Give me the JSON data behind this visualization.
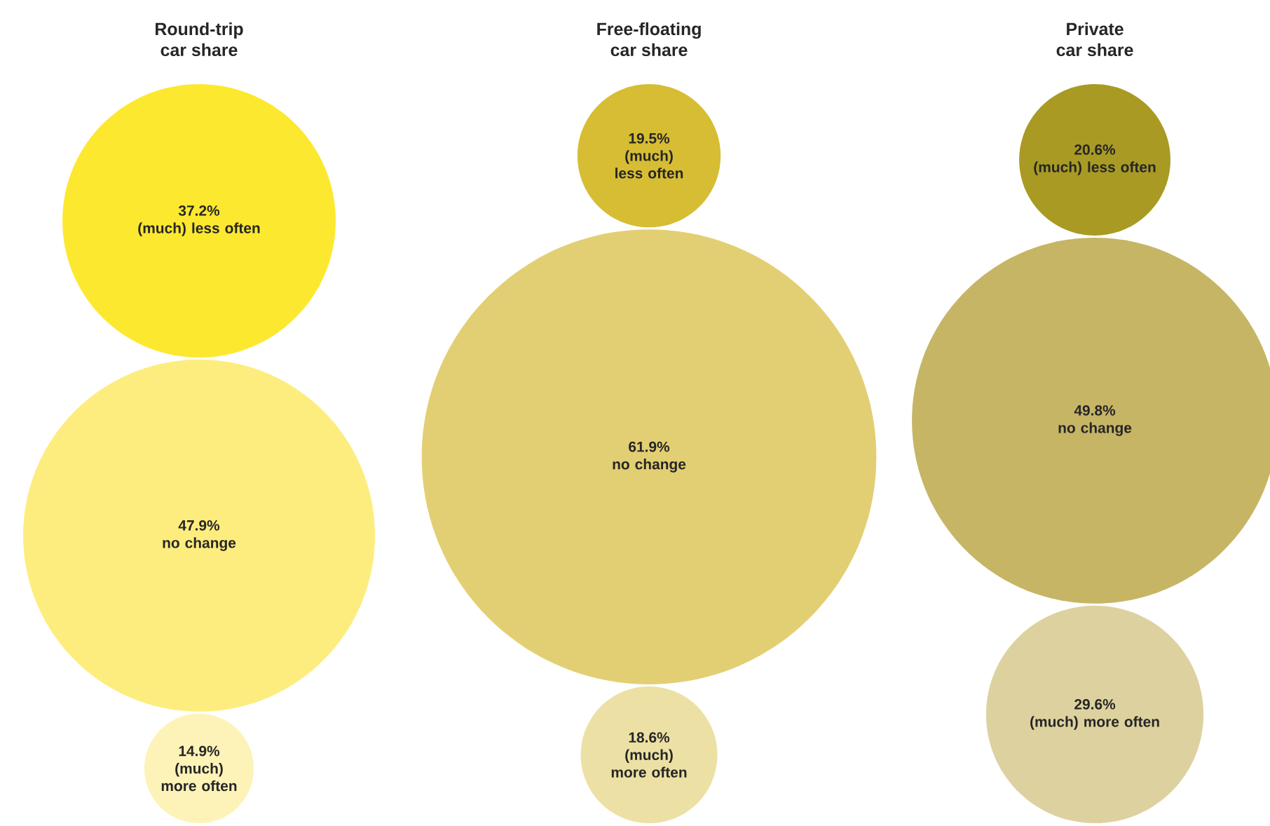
{
  "chart_data": [
    {
      "type": "other",
      "title": "Round-trip",
      "subtitle": "car share",
      "categories": [
        "(much) less often",
        "no change",
        "(much) more often"
      ],
      "values": [
        37.2,
        47.9,
        14.9
      ],
      "value_labels": [
        "37.2%",
        "47.9%",
        "14.9%"
      ],
      "colors": [
        "#fde830",
        "#fded7e",
        "#fdf3b8"
      ]
    },
    {
      "type": "other",
      "title": "Free-floating",
      "subtitle": "car share",
      "categories": [
        "(much) less often",
        "no change",
        "(much) more often"
      ],
      "values": [
        19.5,
        61.9,
        18.6
      ],
      "value_labels": [
        "19.5%",
        "61.9%",
        "18.6%"
      ],
      "colors": [
        "#d6bd33",
        "#e3cf73",
        "#ece0a4"
      ]
    },
    {
      "type": "other",
      "title": "Private",
      "subtitle": "car share",
      "categories": [
        "(much) less often",
        "no change",
        "(much) more often"
      ],
      "values": [
        20.6,
        49.8,
        29.6
      ],
      "value_labels": [
        "20.6%",
        "49.8%",
        "29.6%"
      ],
      "colors": [
        "#a99a24",
        "#c6b565",
        "#ddd29f"
      ]
    }
  ]
}
